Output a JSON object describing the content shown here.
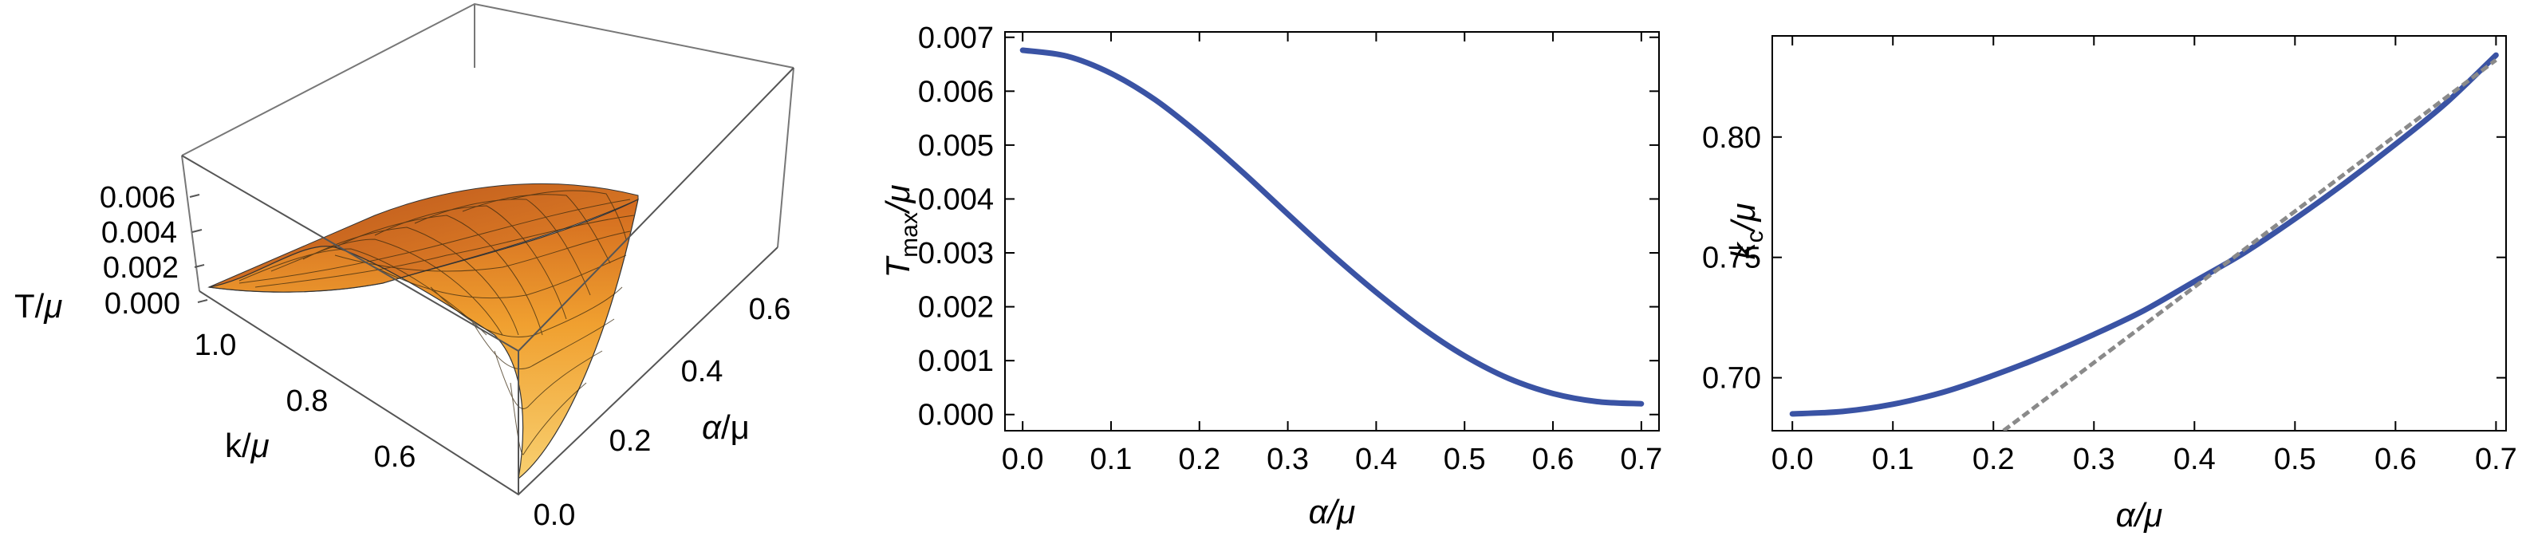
{
  "chart_data": [
    {
      "type": "surface",
      "zlabel_pre": "T/",
      "zlabel_mu": "μ",
      "klabel_pre": "k/",
      "klabel_mu": "μ",
      "alabel_alpha": "α",
      "alabel_rest": "/μ",
      "z_ticks": [
        "0.000",
        "0.002",
        "0.004",
        "0.006"
      ],
      "k_ticks": [
        "1.0",
        "0.8",
        "0.6"
      ],
      "alpha_ticks": [
        "0.0",
        "0.2",
        "0.4",
        "0.6"
      ],
      "zlim": [
        0,
        0.0068
      ],
      "klim": [
        0.5,
        1.1
      ],
      "alphalim": [
        0,
        0.7
      ]
    },
    {
      "type": "line",
      "xlabel": "α/μ",
      "ylabel_T": "T",
      "ylabel_sub": "max",
      "ylabel_rest": "/μ",
      "xlim": [
        -0.02,
        0.72
      ],
      "ylim": [
        -0.0003,
        0.0071
      ],
      "x_ticks": [
        "0.0",
        "0.1",
        "0.2",
        "0.3",
        "0.4",
        "0.5",
        "0.6",
        "0.7"
      ],
      "y_ticks": [
        "0.000",
        "0.001",
        "0.002",
        "0.003",
        "0.004",
        "0.005",
        "0.006",
        "0.007"
      ],
      "series": [
        {
          "color": "#3a53a4",
          "x": [
            0.0,
            0.05,
            0.1,
            0.15,
            0.2,
            0.25,
            0.3,
            0.35,
            0.4,
            0.45,
            0.5,
            0.55,
            0.6,
            0.65,
            0.7
          ],
          "y": [
            0.00676,
            0.00665,
            0.00633,
            0.00584,
            0.0052,
            0.00448,
            0.00372,
            0.00297,
            0.00227,
            0.00163,
            0.00109,
            0.00067,
            0.00039,
            0.00024,
            0.0002
          ]
        }
      ]
    },
    {
      "type": "line",
      "xlabel": "α/μ",
      "ylabel_k": "k",
      "ylabel_sub": "c",
      "ylabel_rest": "/μ",
      "xlim": [
        -0.02,
        0.71
      ],
      "ylim": [
        0.678,
        0.842
      ],
      "x_ticks": [
        "0.0",
        "0.1",
        "0.2",
        "0.3",
        "0.4",
        "0.5",
        "0.6",
        "0.7"
      ],
      "y_ticks": [
        "0.70",
        "0.75",
        "0.80"
      ],
      "series": [
        {
          "color": "#3a53a4",
          "x": [
            0.0,
            0.05,
            0.1,
            0.15,
            0.2,
            0.25,
            0.3,
            0.35,
            0.4,
            0.45,
            0.5,
            0.55,
            0.6,
            0.65,
            0.7
          ],
          "y": [
            0.685,
            0.686,
            0.689,
            0.694,
            0.701,
            0.709,
            0.718,
            0.728,
            0.74,
            0.752,
            0.766,
            0.781,
            0.797,
            0.814,
            0.834
          ]
        },
        {
          "color": "#8a8a8a",
          "dashed": true,
          "x": [
            0.21,
            0.7
          ],
          "y": [
            0.678,
            0.832
          ]
        }
      ]
    }
  ]
}
